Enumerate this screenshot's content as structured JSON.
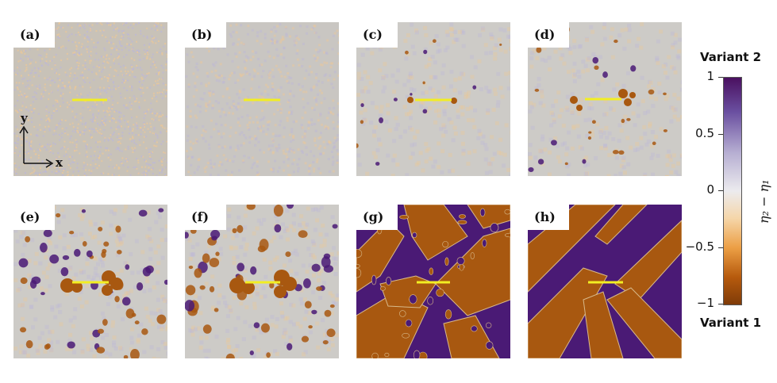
{
  "panels": [
    {
      "label": "(a)"
    },
    {
      "label": "(b)"
    },
    {
      "label": "(c)"
    },
    {
      "label": "(d)"
    },
    {
      "label": "(e)"
    },
    {
      "label": "(f)"
    },
    {
      "label": "(g)"
    },
    {
      "label": "(h)"
    }
  ],
  "axes": {
    "x": "x",
    "y": "y"
  },
  "colorbar": {
    "top_title": "Variant 2",
    "bottom_title": "Variant 1",
    "ticks": [
      "1",
      "0.5",
      "0",
      "−0.5",
      "−1"
    ],
    "label": "η₂ − η₁",
    "colors": {
      "max": "#7f3b08",
      "mid": "#ecebee",
      "min": "#4a1060"
    }
  }
}
